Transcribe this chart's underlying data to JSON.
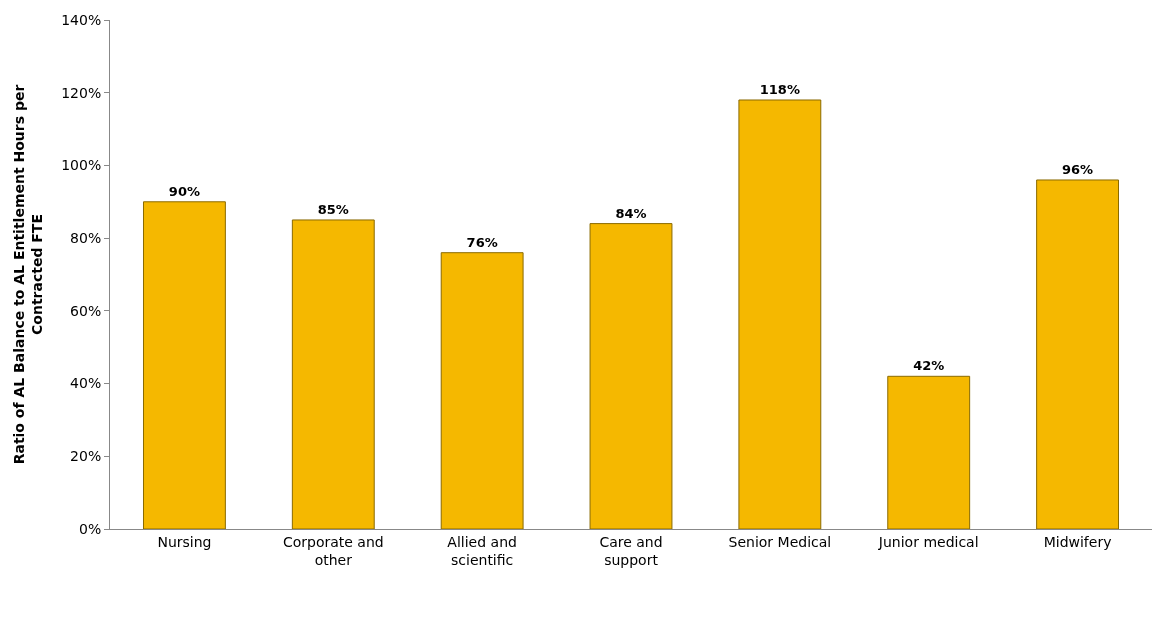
{
  "chart_data": {
    "type": "bar",
    "categories": [
      "Nursing",
      "Corporate and other",
      "Allied and scientific",
      "Care and support",
      "Senior Medical",
      "Junior medical",
      "Midwifery"
    ],
    "values": [
      90,
      85,
      76,
      84,
      118,
      42,
      96
    ],
    "value_labels": [
      "90%",
      "85%",
      "76%",
      "84%",
      "118%",
      "42%",
      "96%"
    ],
    "color": "#f5b800",
    "ylabel": "Ratio of AL Balance to AL Entitlement Hours per Contracted FTE",
    "ylim": [
      0,
      140
    ],
    "yticks": [
      {
        "value": 0,
        "label": "0%"
      },
      {
        "value": 20,
        "label": "20%"
      },
      {
        "value": 40,
        "label": "40%"
      },
      {
        "value": 60,
        "label": "60%"
      },
      {
        "value": 80,
        "label": "80%"
      },
      {
        "value": 100,
        "label": "100%"
      },
      {
        "value": 120,
        "label": "120%"
      },
      {
        "value": 140,
        "label": "140%"
      }
    ],
    "grid": false
  }
}
